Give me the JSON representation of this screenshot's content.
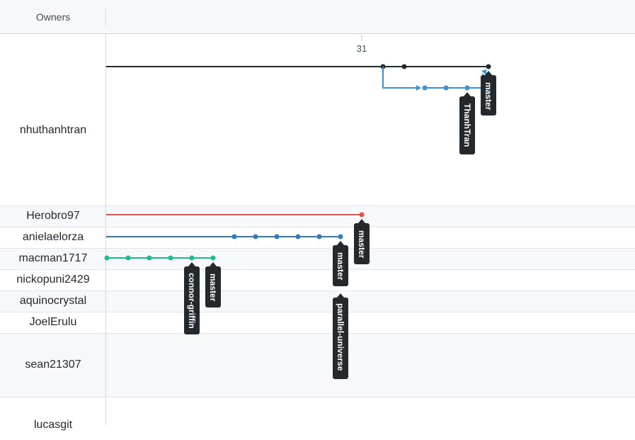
{
  "header": {
    "owners_label": "Owners"
  },
  "timeline": {
    "date_label": "31"
  },
  "colors": {
    "nhuthanhtran_master": "#24292e",
    "nhuthanhtran_branch": "#3b93d6",
    "herobro97": "#e5534b",
    "anielaelorza": "#2f7cc0",
    "macman1717": "#1fbd8c",
    "tag_bg": "#24292e"
  },
  "owners": [
    {
      "name": "nhuthanhtran"
    },
    {
      "name": "Herobro97"
    },
    {
      "name": "anielaelorza"
    },
    {
      "name": "macman1717"
    },
    {
      "name": "nickopuni2429"
    },
    {
      "name": "aquinocrystal"
    },
    {
      "name": "JoelErulu"
    },
    {
      "name": "sean21307"
    },
    {
      "name": "lucasgit"
    }
  ],
  "branches": {
    "nhuthanhtran_master": "master",
    "nhuthanhtran_thanhtran": "ThanhTran",
    "herobro97_master": "master",
    "anielaelorza_master": "master",
    "anielaelorza_parallel": "parallel-universe",
    "macman1717_connor": "connor-griffin",
    "macman1717_master": "master"
  }
}
